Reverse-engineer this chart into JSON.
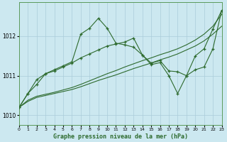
{
  "title": "Graphe pression niveau de la mer (hPa)",
  "background_color": "#cce8f0",
  "grid_color": "#aaccda",
  "line_color": "#2d6a2d",
  "xlim": [
    0,
    23
  ],
  "ylim": [
    1009.75,
    1012.85
  ],
  "yticks": [
    1010,
    1011,
    1012
  ],
  "xticks": [
    0,
    1,
    2,
    3,
    4,
    5,
    6,
    7,
    8,
    9,
    10,
    11,
    12,
    13,
    14,
    15,
    16,
    17,
    18,
    19,
    20,
    21,
    22,
    23
  ],
  "line1_x": [
    0,
    1,
    2,
    3,
    4,
    5,
    6,
    7,
    8,
    9,
    10,
    11,
    12,
    13,
    14,
    15,
    16,
    17,
    18,
    19,
    20,
    21,
    22,
    23
  ],
  "line1_y": [
    1010.2,
    1010.35,
    1010.45,
    1010.5,
    1010.55,
    1010.6,
    1010.65,
    1010.72,
    1010.8,
    1010.88,
    1010.95,
    1011.02,
    1011.1,
    1011.18,
    1011.25,
    1011.32,
    1011.4,
    1011.47,
    1011.55,
    1011.65,
    1011.75,
    1011.88,
    1012.05,
    1012.25
  ],
  "line2_x": [
    0,
    1,
    2,
    3,
    4,
    5,
    6,
    7,
    8,
    9,
    10,
    11,
    12,
    13,
    14,
    15,
    16,
    17,
    18,
    19,
    20,
    21,
    22,
    23
  ],
  "line2_y": [
    1010.2,
    1010.38,
    1010.48,
    1010.53,
    1010.58,
    1010.64,
    1010.7,
    1010.78,
    1010.87,
    1010.96,
    1011.05,
    1011.13,
    1011.22,
    1011.3,
    1011.38,
    1011.45,
    1011.53,
    1011.6,
    1011.68,
    1011.78,
    1011.9,
    1012.05,
    1012.25,
    1012.55
  ],
  "line3_x": [
    0,
    1,
    2,
    3,
    4,
    5,
    6,
    7,
    8,
    9,
    10,
    11,
    12,
    13,
    14,
    15,
    16,
    17,
    18,
    19,
    20,
    21,
    22,
    23
  ],
  "line3_y": [
    1010.2,
    1010.55,
    1010.9,
    1011.05,
    1011.15,
    1011.25,
    1011.35,
    1012.05,
    1012.2,
    1012.45,
    1012.2,
    1011.82,
    1011.78,
    1011.72,
    1011.52,
    1011.28,
    1011.33,
    1011.0,
    1010.55,
    1011.0,
    1011.5,
    1011.68,
    1012.18,
    1012.65
  ],
  "line4_x": [
    0,
    1,
    2,
    3,
    4,
    5,
    6,
    7,
    8,
    9,
    10,
    11,
    12,
    13,
    14,
    15,
    16,
    17,
    18,
    19,
    20,
    21,
    22,
    23
  ],
  "line4_y": [
    1010.2,
    1010.55,
    1010.78,
    1011.05,
    1011.12,
    1011.22,
    1011.32,
    1011.45,
    1011.55,
    1011.65,
    1011.75,
    1011.8,
    1011.85,
    1011.95,
    1011.52,
    1011.32,
    1011.38,
    1011.12,
    1011.1,
    1011.0,
    1011.15,
    1011.22,
    1011.68,
    1012.65
  ]
}
